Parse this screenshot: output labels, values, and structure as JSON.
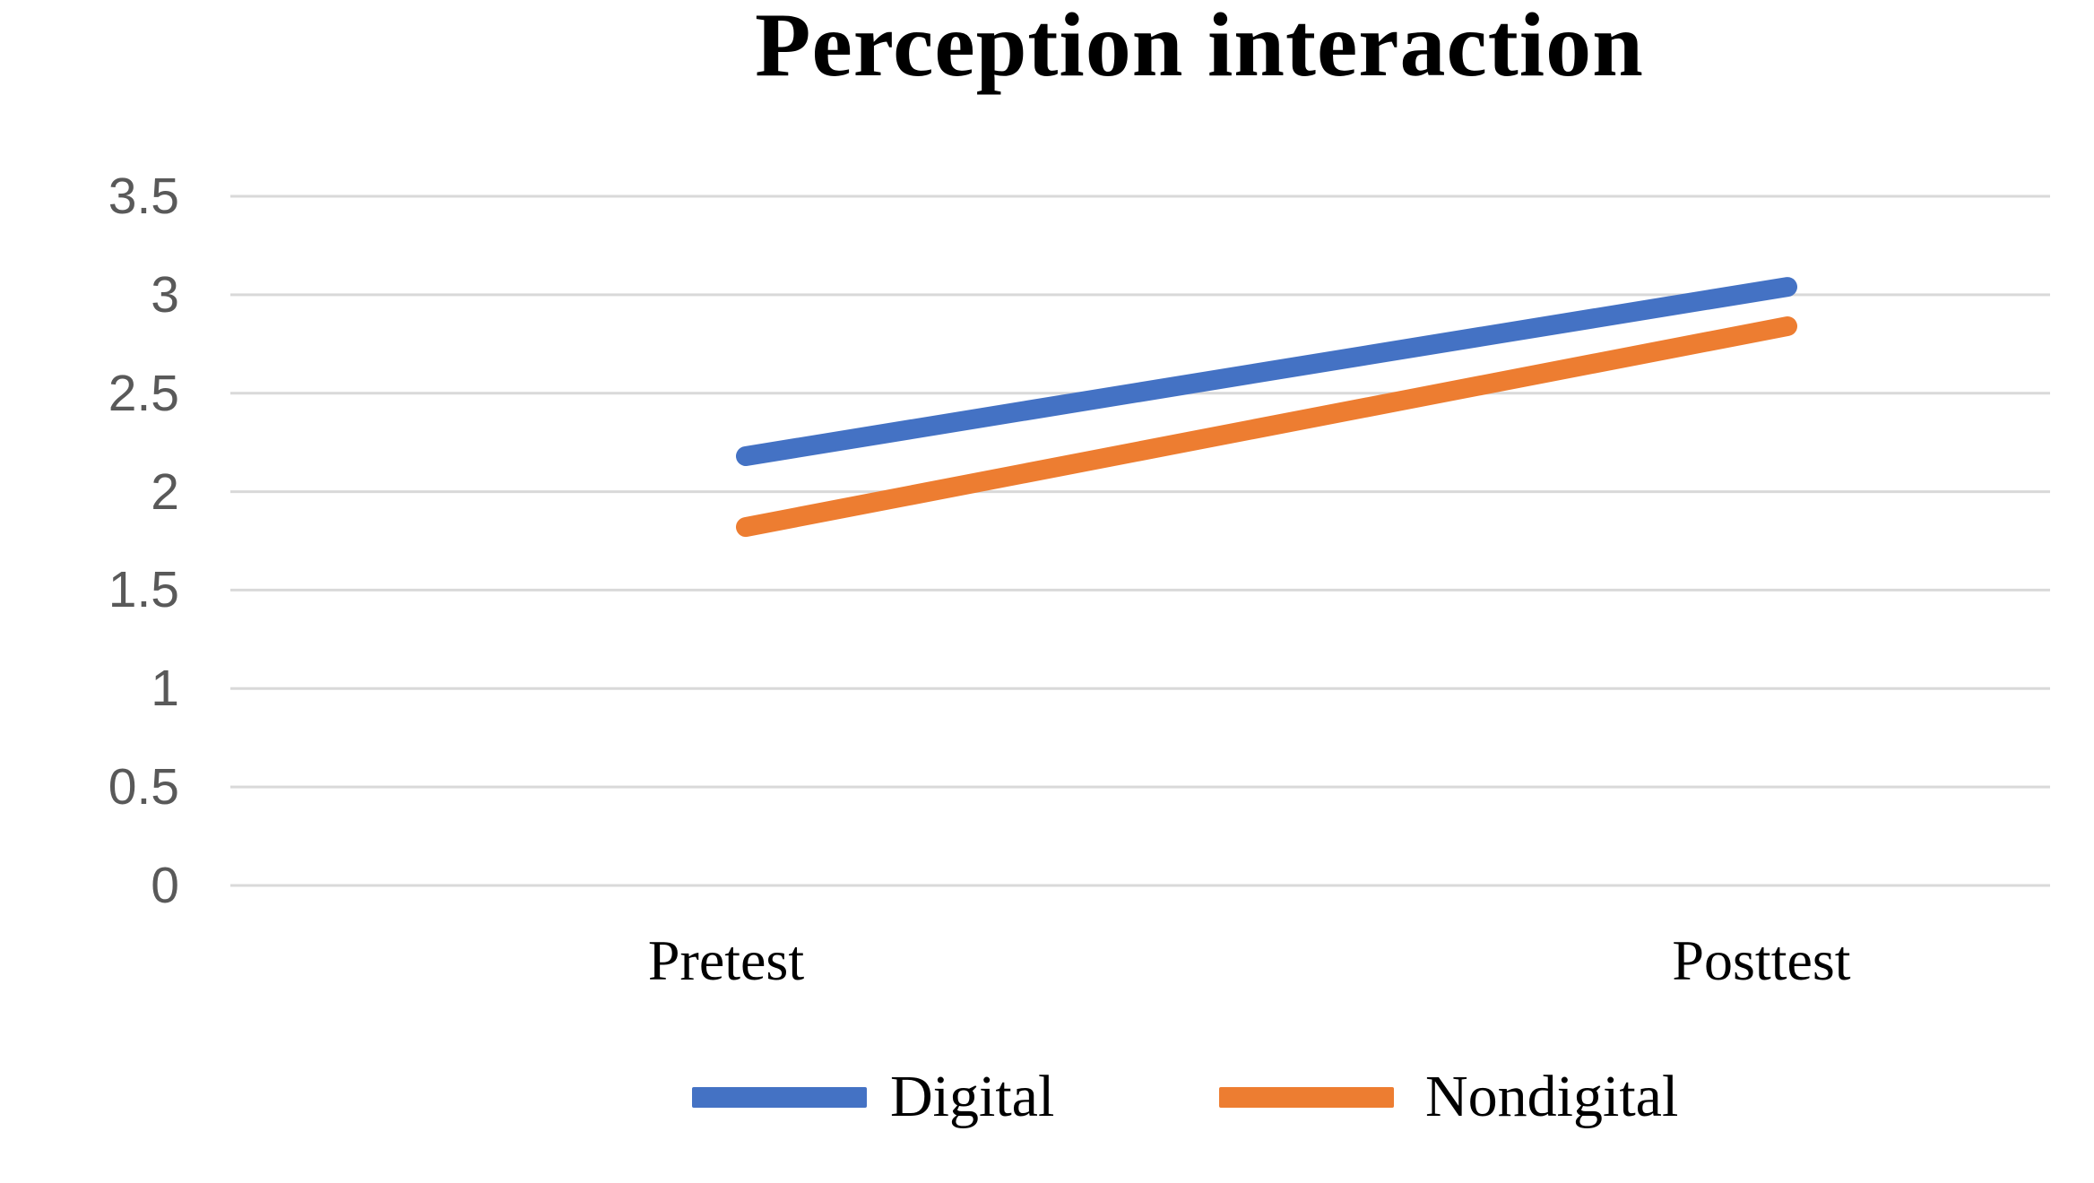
{
  "title": "Perception interaction",
  "chart_data": {
    "type": "line",
    "title": "Perception interaction",
    "categories": [
      "Pretest",
      "Posttest"
    ],
    "series": [
      {
        "name": "Digital",
        "color": "#4472C4",
        "values": [
          2.18,
          3.04
        ]
      },
      {
        "name": "Nondigital",
        "color": "#ED7D31",
        "values": [
          1.82,
          2.84
        ]
      }
    ],
    "xlabel": "",
    "ylabel": "",
    "ylim": [
      0,
      3.5
    ],
    "ytick_step": 0.5,
    "ytick_labels": [
      "0",
      "0.5",
      "1",
      "1.5",
      "2",
      "2.5",
      "3",
      "3.5"
    ],
    "grid": "horizontal",
    "gridline_color": "#D9D9D9",
    "axis_label_color": "#595959",
    "text_color": "#000000",
    "legend_position": "bottom"
  }
}
